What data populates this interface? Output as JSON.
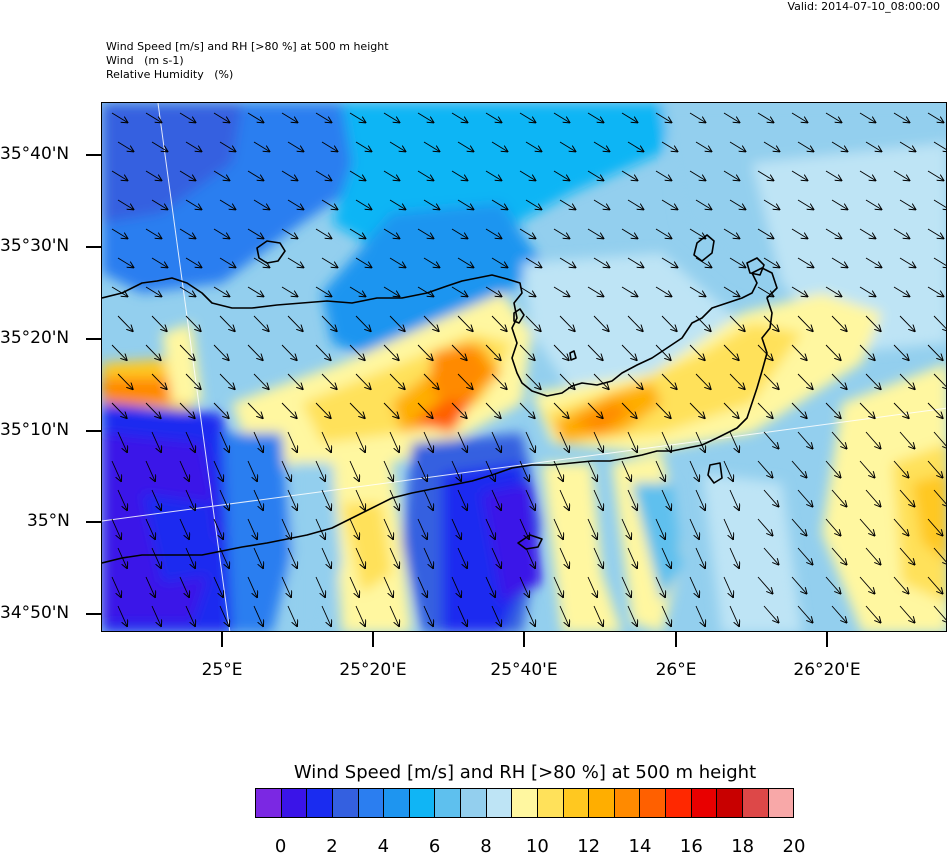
{
  "header": {
    "valid": "Valid: 2014-07-10_08:00:00",
    "line1": "Wind Speed [m/s] and RH [>80 %] at 500 m height",
    "line2": "Wind   (m s-1)",
    "line3": "Relative Humidity   (%)"
  },
  "map": {
    "lat_labels": [
      "35°40'N",
      "35°30'N",
      "35°20'N",
      "35°10'N",
      "35°N",
      "34°50'N"
    ],
    "lon_labels": [
      "25°E",
      "25°20'E",
      "25°40'E",
      "26°E",
      "26°20'E"
    ],
    "wind_direction": "north-west to south-east",
    "land_outline": "Crete"
  },
  "colorbar": {
    "title": "Wind Speed [m/s] and RH [>80 %] at 500 m height",
    "colors": [
      "#7b28e3",
      "#3a14e8",
      "#1a2cf0",
      "#3460e0",
      "#2b7ef0",
      "#1e95f0",
      "#10b5f5",
      "#5ec0ee",
      "#93cfee",
      "#bee4f5",
      "#fff7a0",
      "#ffe15a",
      "#ffc820",
      "#ffae00",
      "#ff8a00",
      "#ff6000",
      "#ff2800",
      "#e80000",
      "#c80000",
      "#dd4848",
      "#f8a8a8"
    ],
    "labels": [
      "0",
      "2",
      "4",
      "6",
      "8",
      "10",
      "12",
      "14",
      "16",
      "18",
      "20"
    ]
  }
}
